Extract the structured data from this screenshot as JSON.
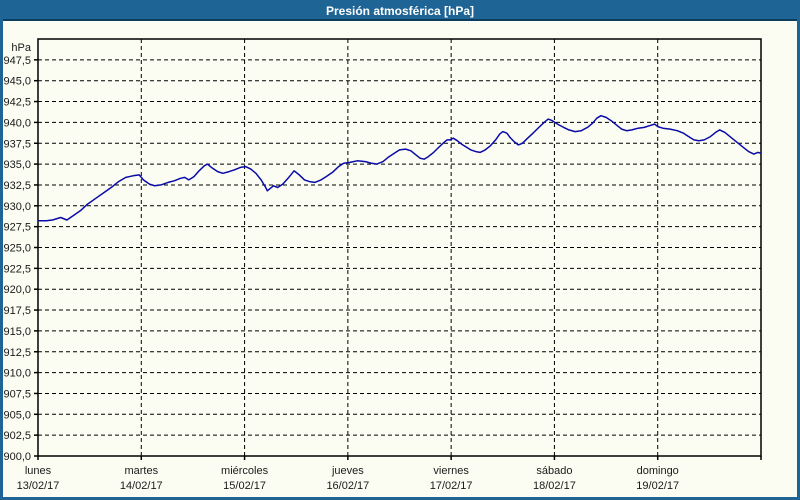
{
  "window": {
    "title": "Presión atmosférica [hPa]",
    "colors": {
      "title_bar": "#1e6495",
      "title_bar_edge": "#0b3d5e",
      "border": "#1e6495",
      "background": "#fbfdf2",
      "axis": "#000000",
      "grid": "#000000",
      "text": "#1a1a1a",
      "line": "#0a0aa8"
    }
  },
  "chart_data": {
    "type": "line",
    "title": "Presión atmosférica [hPa]",
    "unit_label": "hPa",
    "ylabel": "hPa",
    "xlabel": "",
    "ylim": [
      900,
      950
    ],
    "ytick_step": 2.5,
    "ytick_labels": [
      "947,5",
      "945,0",
      "942,5",
      "940,0",
      "937,5",
      "935,0",
      "932,5",
      "930,0",
      "927,5",
      "925,0",
      "922,5",
      "920,0",
      "917,5",
      "915,0",
      "912,5",
      "910,0",
      "907,5",
      "905,0",
      "902,5",
      "900,0"
    ],
    "grid": "dashed",
    "legend": "none",
    "days": [
      {
        "name": "lunes",
        "date": "13/02/17"
      },
      {
        "name": "martes",
        "date": "14/02/17"
      },
      {
        "name": "miércoles",
        "date": "15/02/17"
      },
      {
        "name": "jueves",
        "date": "16/02/17"
      },
      {
        "name": "viernes",
        "date": "17/02/17"
      },
      {
        "name": "sábado",
        "date": "18/02/17"
      },
      {
        "name": "domingo",
        "date": "19/02/17"
      }
    ],
    "series": [
      {
        "name": "Presión atmosférica",
        "color": "#0a0aa8",
        "x_unit": "day_offset",
        "points": [
          [
            0.0,
            928.2
          ],
          [
            0.08,
            928.2
          ],
          [
            0.14,
            928.3
          ],
          [
            0.22,
            928.6
          ],
          [
            0.28,
            928.3
          ],
          [
            0.34,
            928.8
          ],
          [
            0.41,
            929.4
          ],
          [
            0.48,
            930.2
          ],
          [
            0.56,
            930.9
          ],
          [
            0.64,
            931.6
          ],
          [
            0.72,
            932.3
          ],
          [
            0.78,
            932.9
          ],
          [
            0.85,
            933.4
          ],
          [
            0.92,
            933.6
          ],
          [
            0.98,
            933.7
          ],
          [
            1.02,
            933.1
          ],
          [
            1.08,
            932.6
          ],
          [
            1.13,
            932.4
          ],
          [
            1.19,
            932.5
          ],
          [
            1.26,
            932.8
          ],
          [
            1.32,
            933.0
          ],
          [
            1.38,
            933.3
          ],
          [
            1.42,
            933.4
          ],
          [
            1.46,
            933.1
          ],
          [
            1.51,
            933.5
          ],
          [
            1.56,
            934.2
          ],
          [
            1.61,
            934.8
          ],
          [
            1.64,
            935.0
          ],
          [
            1.69,
            934.5
          ],
          [
            1.74,
            934.1
          ],
          [
            1.79,
            933.9
          ],
          [
            1.85,
            934.1
          ],
          [
            1.9,
            934.3
          ],
          [
            1.96,
            934.6
          ],
          [
            2.01,
            934.7
          ],
          [
            2.06,
            934.4
          ],
          [
            2.11,
            933.9
          ],
          [
            2.16,
            933.1
          ],
          [
            2.2,
            932.3
          ],
          [
            2.22,
            931.8
          ],
          [
            2.25,
            932.1
          ],
          [
            2.28,
            932.4
          ],
          [
            2.32,
            932.2
          ],
          [
            2.37,
            932.6
          ],
          [
            2.42,
            933.3
          ],
          [
            2.46,
            933.9
          ],
          [
            2.48,
            934.2
          ],
          [
            2.53,
            933.7
          ],
          [
            2.58,
            933.1
          ],
          [
            2.63,
            932.9
          ],
          [
            2.68,
            932.8
          ],
          [
            2.74,
            933.1
          ],
          [
            2.79,
            933.5
          ],
          [
            2.85,
            934.0
          ],
          [
            2.91,
            934.7
          ],
          [
            2.96,
            935.1
          ],
          [
            3.02,
            935.2
          ],
          [
            3.09,
            935.4
          ],
          [
            3.17,
            935.3
          ],
          [
            3.23,
            935.1
          ],
          [
            3.28,
            935.0
          ],
          [
            3.34,
            935.3
          ],
          [
            3.39,
            935.8
          ],
          [
            3.45,
            936.3
          ],
          [
            3.5,
            936.7
          ],
          [
            3.56,
            936.8
          ],
          [
            3.61,
            936.6
          ],
          [
            3.66,
            936.1
          ],
          [
            3.7,
            935.7
          ],
          [
            3.74,
            935.6
          ],
          [
            3.78,
            935.9
          ],
          [
            3.83,
            936.4
          ],
          [
            3.88,
            937.0
          ],
          [
            3.93,
            937.6
          ],
          [
            3.96,
            937.9
          ],
          [
            3.99,
            937.9
          ],
          [
            4.02,
            938.1
          ],
          [
            4.06,
            937.8
          ],
          [
            4.1,
            937.4
          ],
          [
            4.14,
            937.1
          ],
          [
            4.19,
            936.7
          ],
          [
            4.24,
            936.5
          ],
          [
            4.28,
            936.4
          ],
          [
            4.33,
            936.7
          ],
          [
            4.38,
            937.2
          ],
          [
            4.43,
            937.9
          ],
          [
            4.47,
            938.6
          ],
          [
            4.5,
            938.9
          ],
          [
            4.54,
            938.7
          ],
          [
            4.57,
            938.2
          ],
          [
            4.61,
            937.7
          ],
          [
            4.65,
            937.3
          ],
          [
            4.69,
            937.5
          ],
          [
            4.74,
            938.1
          ],
          [
            4.8,
            938.8
          ],
          [
            4.85,
            939.4
          ],
          [
            4.9,
            940.0
          ],
          [
            4.94,
            940.4
          ],
          [
            4.98,
            940.2
          ],
          [
            5.03,
            939.8
          ],
          [
            5.09,
            939.4
          ],
          [
            5.14,
            939.1
          ],
          [
            5.2,
            938.9
          ],
          [
            5.26,
            939.0
          ],
          [
            5.32,
            939.4
          ],
          [
            5.37,
            939.9
          ],
          [
            5.41,
            940.5
          ],
          [
            5.45,
            940.8
          ],
          [
            5.5,
            940.6
          ],
          [
            5.55,
            940.2
          ],
          [
            5.6,
            939.7
          ],
          [
            5.65,
            939.2
          ],
          [
            5.7,
            939.0
          ],
          [
            5.75,
            939.1
          ],
          [
            5.81,
            939.3
          ],
          [
            5.87,
            939.4
          ],
          [
            5.92,
            939.6
          ],
          [
            5.97,
            939.8
          ],
          [
            6.0,
            939.5
          ],
          [
            6.05,
            939.3
          ],
          [
            6.12,
            939.2
          ],
          [
            6.19,
            939.0
          ],
          [
            6.25,
            938.7
          ],
          [
            6.3,
            938.3
          ],
          [
            6.35,
            937.9
          ],
          [
            6.4,
            937.8
          ],
          [
            6.45,
            937.9
          ],
          [
            6.51,
            938.3
          ],
          [
            6.56,
            938.8
          ],
          [
            6.6,
            939.1
          ],
          [
            6.65,
            938.8
          ],
          [
            6.71,
            938.2
          ],
          [
            6.77,
            937.6
          ],
          [
            6.83,
            937.0
          ],
          [
            6.88,
            936.5
          ],
          [
            6.93,
            936.2
          ],
          [
            6.97,
            936.4
          ],
          [
            7.0,
            936.3
          ]
        ]
      }
    ]
  }
}
